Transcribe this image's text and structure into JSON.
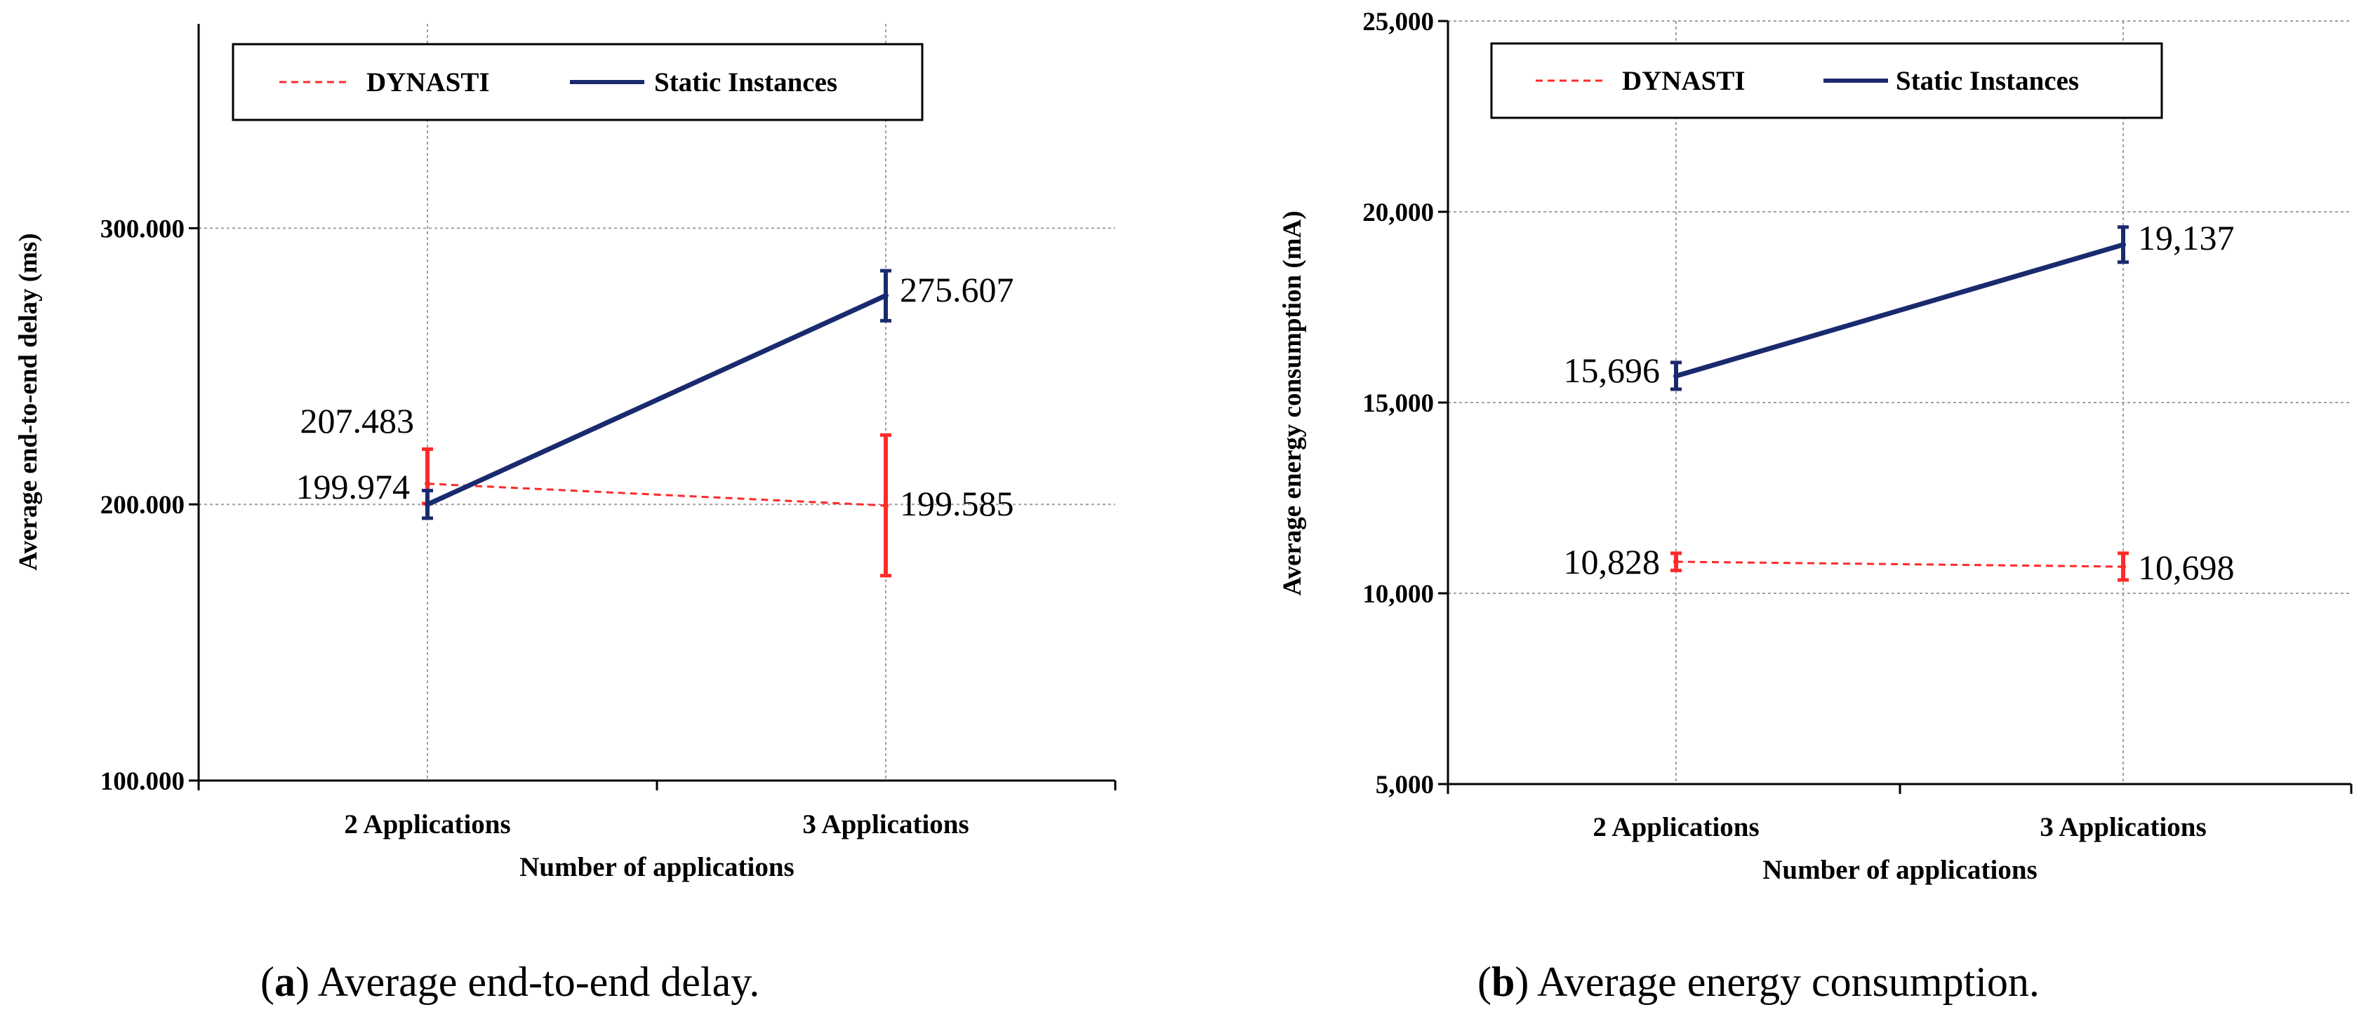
{
  "chart_data": [
    {
      "type": "line",
      "title": "",
      "xlabel": "Number of applications",
      "ylabel": "Average end-to-end delay (ms)",
      "categories": [
        "2 Applications",
        "3 Applications"
      ],
      "ylim": [
        100,
        374
      ],
      "yticks": [
        100,
        200,
        300
      ],
      "ytick_labels": [
        "100.000",
        "200.000",
        "300.000"
      ],
      "grid": true,
      "legend_position": "top-left",
      "series": [
        {
          "name": "DYNASTI",
          "color": "#ff2a2a",
          "style": "dashed",
          "values": [
            207.483,
            199.585
          ],
          "value_labels": [
            "207.483",
            "199.585"
          ],
          "error_low": [
            200.3,
            174.2
          ],
          "error_high": [
            220.0,
            225.1
          ]
        },
        {
          "name": "Static Instances",
          "color": "#1a2a6e",
          "style": "solid",
          "values": [
            199.974,
            275.607
          ],
          "value_labels": [
            "199.974",
            "275.607"
          ],
          "error_low": [
            195.0,
            266.5
          ],
          "error_high": [
            205.0,
            284.6
          ]
        }
      ],
      "caption_label": "a",
      "caption_text": "Average end-to-end delay."
    },
    {
      "type": "line",
      "title": "",
      "xlabel": "Number of applications",
      "ylabel": "Average energy consumption (mA)",
      "categories": [
        "2 Applications",
        "3 Applications"
      ],
      "ylim": [
        5000,
        25000
      ],
      "yticks": [
        5000,
        10000,
        15000,
        20000,
        25000
      ],
      "ytick_labels": [
        "5,000",
        "10,000",
        "15,000",
        "20,000",
        "25,000"
      ],
      "grid": true,
      "legend_position": "top-left",
      "series": [
        {
          "name": "DYNASTI",
          "color": "#ff2a2a",
          "style": "dashed",
          "values": [
            10828,
            10698
          ],
          "value_labels": [
            "10,828",
            "10,698"
          ],
          "error_low": [
            10600,
            10350
          ],
          "error_high": [
            11050,
            11050
          ]
        },
        {
          "name": "Static Instances",
          "color": "#1a2a6e",
          "style": "solid",
          "values": [
            15696,
            19137
          ],
          "value_labels": [
            "15,696",
            "19,137"
          ],
          "error_low": [
            15350,
            18680
          ],
          "error_high": [
            16050,
            19600
          ]
        }
      ],
      "caption_label": "b",
      "caption_text": "Average energy consumption."
    }
  ]
}
